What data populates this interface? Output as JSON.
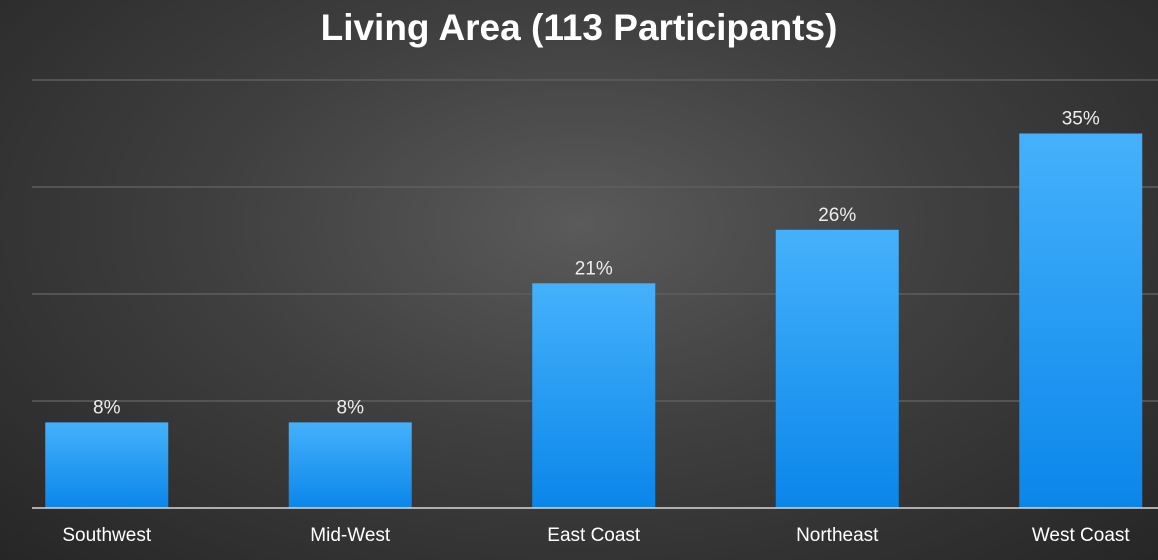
{
  "chart_data": {
    "type": "bar",
    "title": "Living Area (113 Participants)",
    "categories": [
      "Southwest",
      "Mid-West",
      "East Coast",
      "Northeast",
      "West Coast"
    ],
    "values": [
      8,
      8,
      21,
      26,
      35
    ],
    "value_suffix": "%",
    "xlabel": "",
    "ylabel": "",
    "ylim": [
      0,
      40
    ],
    "grid": true,
    "legend": "none",
    "colors": {
      "bar_top": "#45b1fb",
      "bar_bottom": "#0a86ea",
      "background": "#3f3f3f",
      "gridline": "#5e5e5e",
      "text": "#ffffff"
    }
  }
}
